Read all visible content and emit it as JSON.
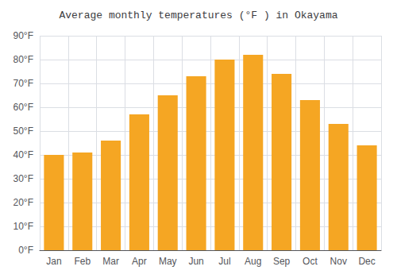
{
  "chart_data": {
    "type": "bar",
    "title": "Average monthly temperatures (°F ) in Okayama",
    "categories": [
      "Jan",
      "Feb",
      "Mar",
      "Apr",
      "May",
      "Jun",
      "Jul",
      "Aug",
      "Sep",
      "Oct",
      "Nov",
      "Dec"
    ],
    "values": [
      40,
      41,
      46,
      57,
      65,
      73,
      80,
      82,
      74,
      63,
      53,
      44
    ],
    "color": "#F5A623",
    "ylim": [
      0,
      90
    ],
    "yticks": [
      {
        "value": 0,
        "label": "0°F"
      },
      {
        "value": 10,
        "label": "10°F"
      },
      {
        "value": 20,
        "label": "20°F"
      },
      {
        "value": 30,
        "label": "30°F"
      },
      {
        "value": 40,
        "label": "40°F"
      },
      {
        "value": 50,
        "label": "50°F"
      },
      {
        "value": 60,
        "label": "60°F"
      },
      {
        "value": 70,
        "label": "70°F"
      },
      {
        "value": 80,
        "label": "80°F"
      },
      {
        "value": 90,
        "label": "90°F"
      }
    ],
    "grid": true
  }
}
